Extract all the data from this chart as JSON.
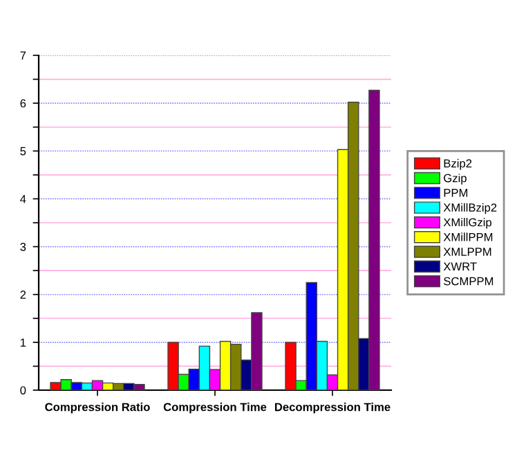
{
  "chart_data": {
    "type": "bar",
    "categories": [
      "Compression Ratio",
      "Compression Time",
      "Decompression Time"
    ],
    "series": [
      {
        "name": "Bzip2",
        "color": "#ff0000",
        "values": [
          0.16,
          1.0,
          1.0
        ]
      },
      {
        "name": "Gzip",
        "color": "#00ff00",
        "values": [
          0.22,
          0.33,
          0.2
        ]
      },
      {
        "name": "PPM",
        "color": "#0000ff",
        "values": [
          0.16,
          0.44,
          2.25
        ]
      },
      {
        "name": "XMillBzip2",
        "color": "#00ffff",
        "values": [
          0.15,
          0.92,
          1.02
        ]
      },
      {
        "name": "XMillGzip",
        "color": "#ff00ff",
        "values": [
          0.2,
          0.43,
          0.32
        ]
      },
      {
        "name": "XMillPPM",
        "color": "#ffff00",
        "values": [
          0.15,
          1.02,
          5.03
        ]
      },
      {
        "name": "XMLPPM",
        "color": "#808000",
        "values": [
          0.14,
          0.96,
          6.02
        ]
      },
      {
        "name": "XWRT",
        "color": "#000080",
        "values": [
          0.14,
          0.63,
          1.08
        ]
      },
      {
        "name": "SCMPPM",
        "color": "#800080",
        "values": [
          0.12,
          1.62,
          6.27
        ]
      }
    ],
    "ylim": [
      0,
      7
    ],
    "yticks": [
      0,
      {
        "value": 0.5,
        "label": null
      },
      1,
      {
        "value": 1.5,
        "label": null
      },
      2,
      {
        "value": 2.5,
        "label": null
      },
      3,
      {
        "value": 3.5,
        "label": null
      },
      4,
      {
        "value": 4.5,
        "label": null
      },
      5,
      {
        "value": 5.5,
        "label": null
      },
      6,
      {
        "value": 6.5,
        "label": null
      },
      7
    ],
    "grid": "y",
    "legend": "right"
  }
}
